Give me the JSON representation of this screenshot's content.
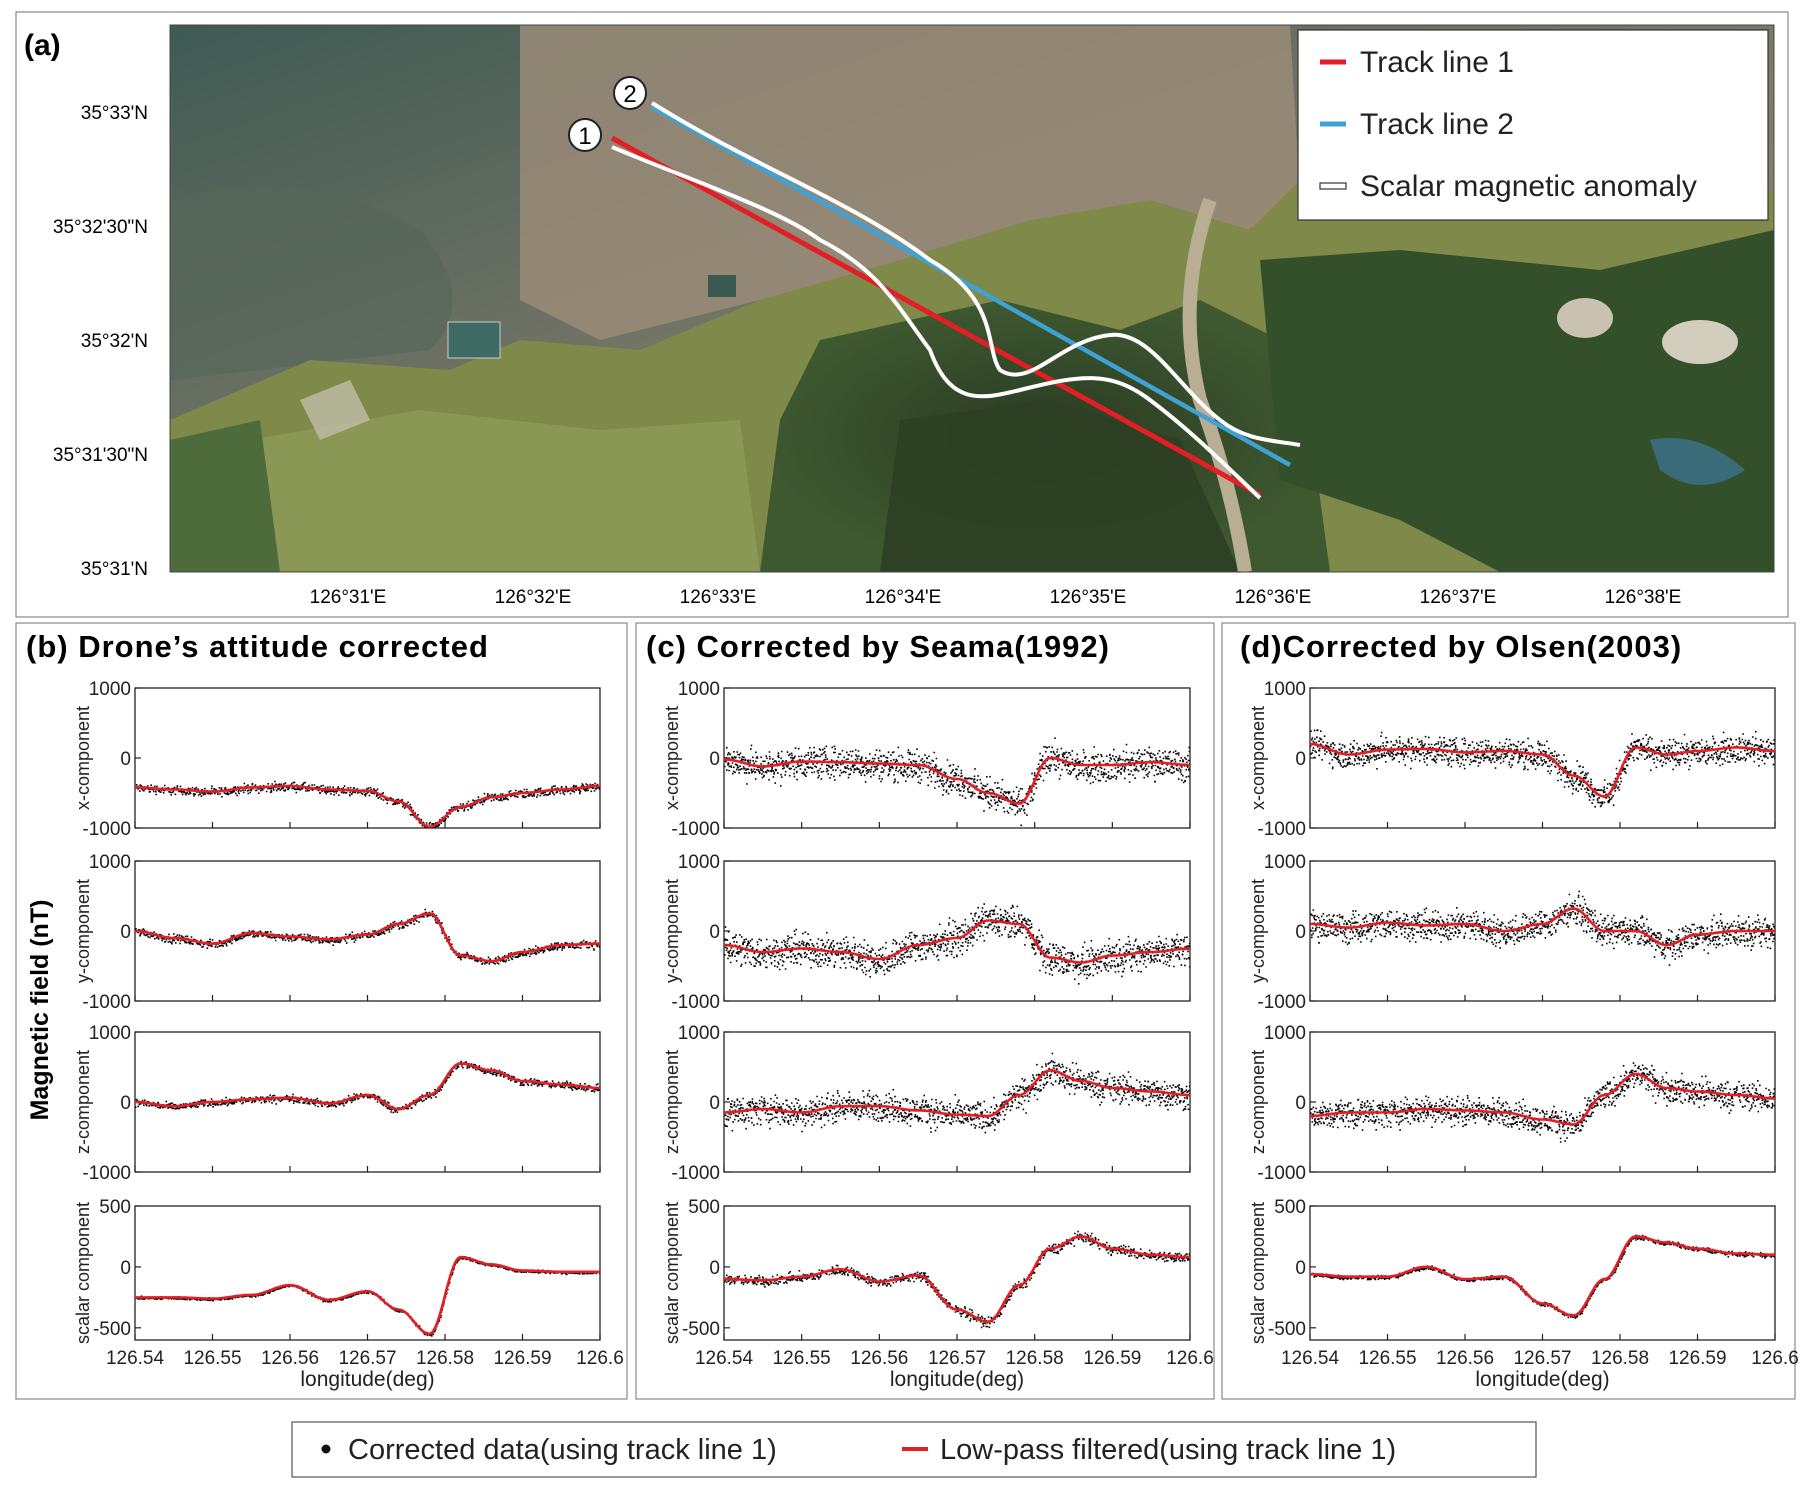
{
  "panel_a": {
    "label": "(a)",
    "lat_ticks": [
      "35°33'N",
      "35°32'30\"N",
      "35°32'N",
      "35°31'30\"N",
      "35°31'N"
    ],
    "lon_ticks": [
      "126°31'E",
      "126°32'E",
      "126°33'E",
      "126°34'E",
      "126°35'E",
      "126°36'E",
      "126°37'E",
      "126°38'E"
    ],
    "legend": {
      "track1": "Track line 1",
      "track2": "Track line 2",
      "anomaly": "Scalar magnetic anomaly"
    },
    "markers": [
      "1",
      "2"
    ],
    "colors": {
      "track1": "#e31e24",
      "track2": "#3fa2d6",
      "anomaly": "#ffffff"
    }
  },
  "panels": {
    "b": {
      "title": "(b) Drone’s attitude corrected"
    },
    "c": {
      "title": "(c) Corrected by Seama(1992)"
    },
    "d": {
      "title": "(d)Corrected by Olsen(2003)"
    }
  },
  "shared": {
    "ylabel": "Magnetic field (nT)",
    "xlabel": "longitude(deg)",
    "row_labels": [
      "x-component",
      "y-component",
      "z-component",
      "scalar component"
    ],
    "component_yticks": [
      "1000",
      "0",
      "-1000"
    ],
    "scalar_yticks": [
      "500",
      "0",
      "-500"
    ],
    "xticks": [
      "126.54",
      "126.55",
      "126.56",
      "126.57",
      "126.58",
      "126.59",
      "126.6"
    ]
  },
  "bottom_legend": {
    "dots": "Corrected data(using track line 1)",
    "line": "Low-pass filtered(using track line 1)"
  },
  "chart_data": [
    {
      "type": "line",
      "title": "(b) Drone’s attitude corrected",
      "xlabel": "longitude(deg)",
      "ylabel": "Magnetic field (nT)",
      "xlim": [
        126.54,
        126.6
      ],
      "x": [
        126.54,
        126.545,
        126.55,
        126.555,
        126.56,
        126.565,
        126.57,
        126.574,
        126.578,
        126.582,
        126.586,
        126.59,
        126.595,
        126.6
      ],
      "series": [
        {
          "name": "x-component",
          "ylim": [
            -1000,
            1000
          ],
          "noise": 55,
          "values": [
            -420,
            -450,
            -480,
            -420,
            -400,
            -450,
            -470,
            -620,
            -980,
            -700,
            -560,
            -500,
            -450,
            -400
          ]
        },
        {
          "name": "y-component",
          "ylim": [
            -1000,
            1000
          ],
          "noise": 50,
          "values": [
            0,
            -100,
            -180,
            -30,
            -80,
            -120,
            -50,
            100,
            250,
            -350,
            -430,
            -300,
            -200,
            -180
          ]
        },
        {
          "name": "z-component",
          "ylim": [
            -1000,
            1000
          ],
          "noise": 45,
          "values": [
            0,
            -60,
            0,
            40,
            60,
            -20,
            100,
            -100,
            100,
            550,
            450,
            300,
            250,
            200
          ]
        },
        {
          "name": "scalar component",
          "ylim": [
            -600,
            500
          ],
          "noise": 10,
          "values": [
            -250,
            -250,
            -260,
            -230,
            -150,
            -270,
            -200,
            -350,
            -550,
            80,
            20,
            -30,
            -40,
            -40
          ]
        }
      ]
    },
    {
      "type": "line",
      "title": "(c) Corrected by Seama(1992)",
      "xlabel": "longitude(deg)",
      "ylabel": "Magnetic field (nT)",
      "xlim": [
        126.54,
        126.6
      ],
      "x": [
        126.54,
        126.545,
        126.55,
        126.555,
        126.56,
        126.565,
        126.57,
        126.574,
        126.578,
        126.582,
        126.586,
        126.59,
        126.595,
        126.6
      ],
      "series": [
        {
          "name": "x-component",
          "ylim": [
            -1000,
            1000
          ],
          "noise": 190,
          "values": [
            -20,
            -120,
            -50,
            -60,
            -80,
            -100,
            -300,
            -500,
            -650,
            0,
            -100,
            -100,
            -60,
            -100
          ]
        },
        {
          "name": "y-component",
          "ylim": [
            -1000,
            1000
          ],
          "noise": 200,
          "values": [
            -200,
            -300,
            -250,
            -300,
            -400,
            -200,
            -100,
            150,
            100,
            -380,
            -450,
            -350,
            -300,
            -250
          ]
        },
        {
          "name": "z-component",
          "ylim": [
            -1000,
            1000
          ],
          "noise": 180,
          "values": [
            -150,
            -100,
            -150,
            -60,
            -60,
            -120,
            -180,
            -200,
            100,
            450,
            300,
            200,
            150,
            100
          ]
        },
        {
          "name": "scalar component",
          "ylim": [
            -600,
            500
          ],
          "noise": 35,
          "values": [
            -100,
            -110,
            -80,
            -20,
            -120,
            -70,
            -350,
            -450,
            -150,
            150,
            250,
            150,
            100,
            80
          ]
        }
      ]
    },
    {
      "type": "line",
      "title": "(d)Corrected by Olsen(2003)",
      "xlabel": "longitude(deg)",
      "ylabel": "Magnetic field (nT)",
      "xlim": [
        126.54,
        126.6
      ],
      "x": [
        126.54,
        126.545,
        126.55,
        126.555,
        126.56,
        126.565,
        126.57,
        126.574,
        126.578,
        126.582,
        126.586,
        126.59,
        126.595,
        126.6
      ],
      "series": [
        {
          "name": "x-component",
          "ylim": [
            -1000,
            1000
          ],
          "noise": 170,
          "values": [
            200,
            50,
            120,
            130,
            80,
            100,
            50,
            -250,
            -550,
            150,
            50,
            100,
            150,
            100
          ]
        },
        {
          "name": "y-component",
          "ylim": [
            -1000,
            1000
          ],
          "noise": 180,
          "values": [
            100,
            50,
            120,
            80,
            100,
            0,
            100,
            320,
            0,
            0,
            -200,
            -50,
            0,
            0
          ]
        },
        {
          "name": "z-component",
          "ylim": [
            -1000,
            1000
          ],
          "noise": 170,
          "values": [
            -200,
            -150,
            -150,
            -100,
            -120,
            -150,
            -250,
            -320,
            100,
            400,
            200,
            150,
            100,
            50
          ]
        },
        {
          "name": "scalar component",
          "ylim": [
            -600,
            500
          ],
          "noise": 15,
          "values": [
            -60,
            -80,
            -80,
            0,
            -100,
            -80,
            -300,
            -400,
            -100,
            250,
            200,
            150,
            110,
            100
          ]
        }
      ]
    }
  ]
}
